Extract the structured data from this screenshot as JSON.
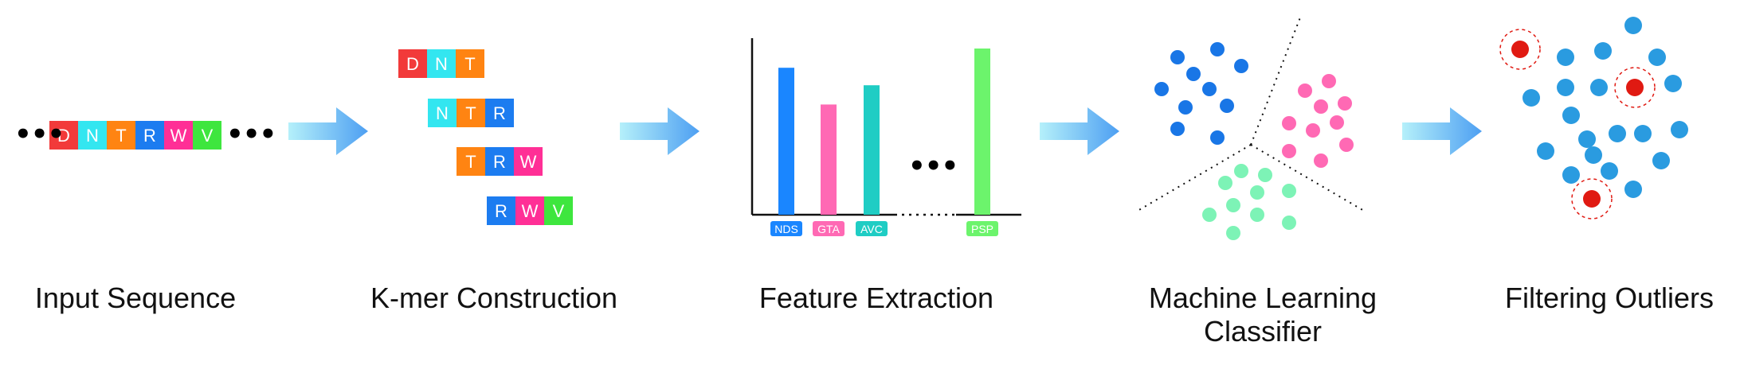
{
  "colors": {
    "D": "#f23a3a",
    "N": "#33e6f0",
    "T": "#ff8412",
    "R": "#1c7cf0",
    "W": "#ff2f96",
    "V": "#3ee63e",
    "arrow_start": "#b5f0fa",
    "arrow_end": "#4d9ff2",
    "feature_bars": [
      "#1a86ff",
      "#ff69b4",
      "#1fcdc4",
      "#6cf46c"
    ],
    "cluster_blue": "#1976e6",
    "cluster_pink": "#ff69b4",
    "cluster_green": "#7df3b6",
    "point_blue": "#2a9be0",
    "outlier_red": "#e01a12"
  },
  "stages": [
    {
      "label": "Input Sequence"
    },
    {
      "label": "K-mer Construction"
    },
    {
      "label": "Feature Extraction"
    },
    {
      "label": "Machine Learning Classifier"
    },
    {
      "label": "Filtering Outliers"
    }
  ],
  "input_sequence": {
    "ellipsis": "•••",
    "residues": [
      "D",
      "N",
      "T",
      "R",
      "W",
      "V"
    ]
  },
  "kmers": [
    [
      "D",
      "N",
      "T"
    ],
    [
      "N",
      "T",
      "R"
    ],
    [
      "T",
      "R",
      "W"
    ],
    [
      "R",
      "W",
      "V"
    ]
  ],
  "features": {
    "ellipsis": "•••",
    "bars": [
      {
        "label": "NDS",
        "level": 0.84
      },
      {
        "label": "GTA",
        "level": 0.63
      },
      {
        "label": "AVC",
        "level": 0.74
      },
      {
        "label": "PSP",
        "level": 0.95
      }
    ]
  }
}
